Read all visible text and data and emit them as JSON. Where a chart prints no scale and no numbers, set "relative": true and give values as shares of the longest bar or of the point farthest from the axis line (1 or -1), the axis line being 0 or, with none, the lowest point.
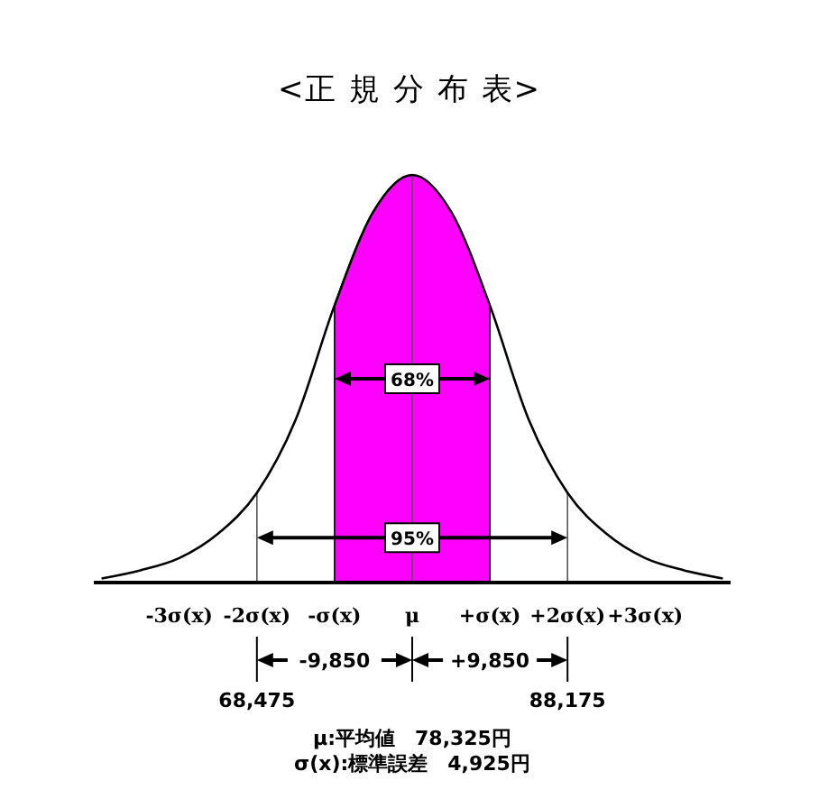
{
  "chart_data": {
    "type": "line",
    "title": "<正 規 分 布 表>",
    "relative": true,
    "x": [
      -4,
      -3.5,
      -3,
      -2.5,
      -2,
      -1.5,
      -1,
      -0.5,
      0,
      0.5,
      1,
      1.5,
      2,
      2.5,
      3,
      3.5,
      4
    ],
    "series": [
      {
        "color": "#000000",
        "values": [
          0.01,
          0.03,
          0.06,
          0.12,
          0.22,
          0.4,
          0.68,
          0.91,
          1,
          0.91,
          0.68,
          0.4,
          0.22,
          0.12,
          0.06,
          0.03,
          0.01
        ]
      }
    ],
    "xlim": [
      -4.1,
      4.1
    ],
    "xticks": [
      {
        "value": -3,
        "label": "-3σ(x)"
      },
      {
        "value": -2,
        "label": "-2σ(x)"
      },
      {
        "value": -1,
        "label": "-σ(x)"
      },
      {
        "value": 0,
        "label": "μ"
      },
      {
        "value": 1,
        "label": "+σ(x)"
      },
      {
        "value": 2,
        "label": "+2σ(x)"
      },
      {
        "value": 3,
        "label": "+3σ(x)"
      }
    ],
    "bands": [
      {
        "axis": "x",
        "from": -1,
        "to": 1,
        "label": "68%",
        "color": "#ff00ff"
      }
    ],
    "ref_lines": [
      {
        "axis": "x",
        "value": -2
      },
      {
        "axis": "x",
        "value": 0
      },
      {
        "axis": "x",
        "value": 2
      }
    ],
    "annotations": [
      "95%",
      "-9,850",
      "+9,850",
      {
        "text": "68,475",
        "x": -2
      },
      {
        "text": "88,175",
        "x": 2
      },
      "μ:平均値　78,325円",
      "σ(x):標準誤差　4,925円"
    ]
  }
}
